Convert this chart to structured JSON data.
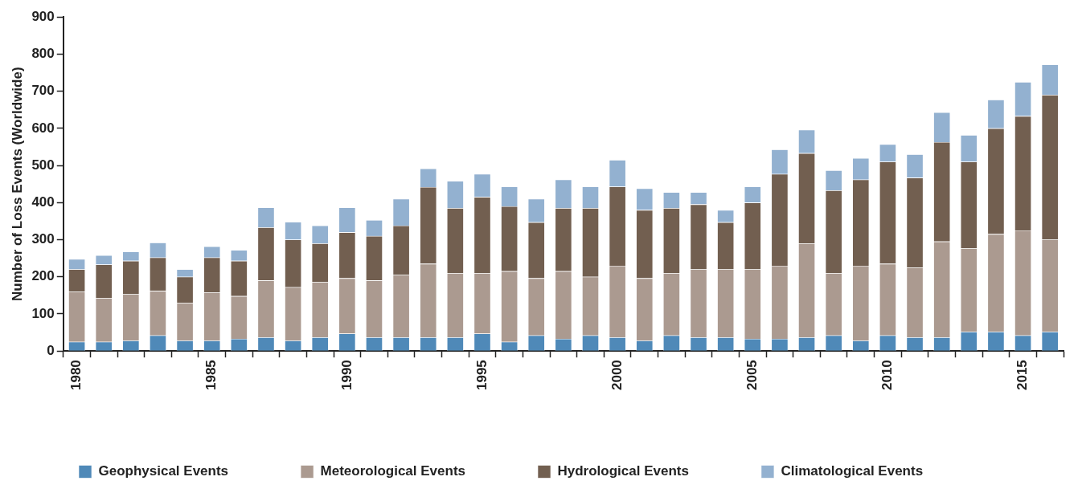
{
  "chart_data": {
    "type": "bar",
    "stacked": true,
    "ylabel": "Number of Loss Events (Worldwide)",
    "categories": [
      "1980",
      null,
      null,
      null,
      null,
      "1985",
      null,
      null,
      null,
      null,
      "1990",
      null,
      null,
      null,
      null,
      "1995",
      null,
      null,
      null,
      null,
      "2000",
      null,
      null,
      null,
      null,
      "2005",
      null,
      null,
      null,
      null,
      "2010",
      null,
      null,
      null,
      null,
      "2015",
      null
    ],
    "series": [
      {
        "name": "Geophysical Events",
        "color": "#4f89b8",
        "values": [
          25,
          25,
          28,
          42,
          28,
          28,
          33,
          37,
          28,
          37,
          47,
          37,
          37,
          37,
          37,
          47,
          25,
          42,
          33,
          42,
          37,
          28,
          42,
          37,
          37,
          33,
          33,
          37,
          42,
          28,
          42,
          37,
          37,
          52,
          52,
          42,
          52
        ]
      },
      {
        "name": "Meteorological Events",
        "color": "#ab9a90",
        "values": [
          135,
          118,
          125,
          120,
          102,
          130,
          115,
          153,
          144,
          149,
          149,
          153,
          168,
          198,
          173,
          163,
          190,
          154,
          182,
          158,
          193,
          168,
          168,
          183,
          183,
          187,
          197,
          253,
          168,
          202,
          193,
          188,
          258,
          225,
          263,
          283,
          248
        ]
      },
      {
        "name": "Hydrological Events",
        "color": "#725f50",
        "values": [
          60,
          90,
          90,
          90,
          70,
          94,
          95,
          143,
          128,
          104,
          124,
          120,
          133,
          207,
          175,
          205,
          175,
          151,
          170,
          185,
          213,
          184,
          175,
          175,
          127,
          180,
          247,
          243,
          223,
          232,
          275,
          242,
          268,
          233,
          285,
          308,
          390
        ]
      },
      {
        "name": "Climatological Events",
        "color": "#93b1d0",
        "values": [
          28,
          25,
          25,
          40,
          20,
          30,
          29,
          54,
          48,
          48,
          67,
          43,
          72,
          50,
          73,
          62,
          53,
          63,
          77,
          58,
          72,
          58,
          43,
          33,
          33,
          43,
          66,
          63,
          54,
          58,
          47,
          63,
          80,
          72,
          77,
          92,
          82
        ]
      }
    ],
    "ylim": [
      0,
      900
    ],
    "yticks": [
      0,
      100,
      200,
      300,
      400,
      500,
      600,
      700,
      800,
      900
    ],
    "grid": false,
    "legend": "bottom"
  }
}
